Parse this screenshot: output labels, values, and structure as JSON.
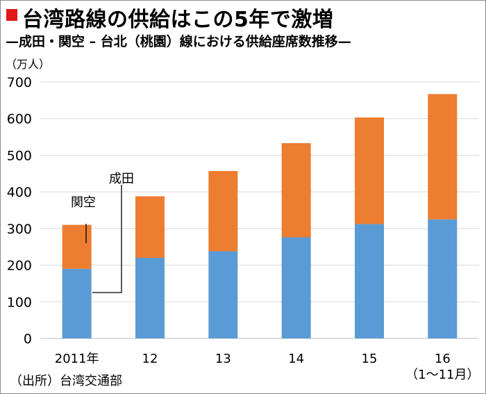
{
  "title": "台湾路線の供給はこの5年で激増",
  "subtitle": "—成田・関空 – 台北（桃園）線における供給座席数推移—",
  "source": "（出所）台湾交通部",
  "colors": {
    "title_square": "#e01919",
    "narita": "#5b9bd5",
    "kansai": "#ed7d31",
    "grid": "#d9d9d9"
  },
  "chart_data": {
    "type": "bar",
    "stacked": true,
    "title": "台湾路線の供給はこの5年で激増",
    "subtitle": "—成田・関空 – 台北（桃園）線における供給座席数推移—",
    "unit": "（万人）",
    "categories": [
      "2011年",
      "12",
      "13",
      "14",
      "15",
      "16"
    ],
    "category_notes": [
      "",
      "",
      "",
      "",
      "",
      "（1～11月）"
    ],
    "series": [
      {
        "name": "成田",
        "color": "#5b9bd5",
        "values": [
          190,
          220,
          238,
          276,
          312,
          325
        ]
      },
      {
        "name": "関空",
        "color": "#ed7d31",
        "values": [
          120,
          168,
          219,
          257,
          291,
          342
        ]
      }
    ],
    "y_ticks": [
      0,
      100,
      200,
      300,
      400,
      500,
      600,
      700
    ],
    "ylim": [
      0,
      700
    ],
    "grid": true,
    "legend": "inline callouts on first bar"
  }
}
